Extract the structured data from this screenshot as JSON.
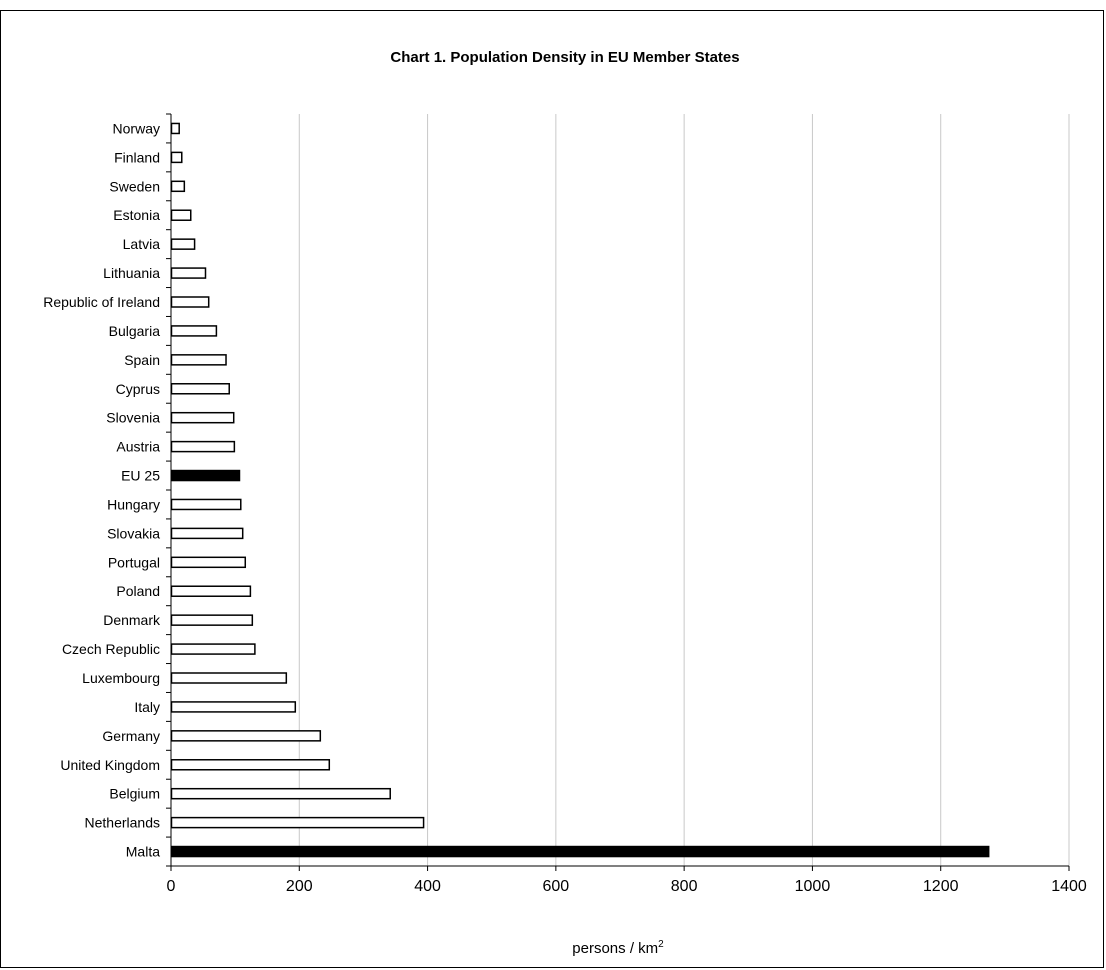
{
  "chart_data": {
    "type": "bar",
    "orientation": "horizontal",
    "title": "Chart 1.  Population Density in EU Member States",
    "xlabel": "persons / km",
    "xlabel_superscript": "2",
    "ylabel": "",
    "xlim": [
      0,
      1400
    ],
    "x_ticks": [
      0,
      200,
      400,
      600,
      800,
      1000,
      1200,
      1400
    ],
    "grid": "vertical",
    "categories": [
      "Norway",
      "Finland",
      "Sweden",
      "Estonia",
      "Latvia",
      "Lithuania",
      "Republic of Ireland",
      "Bulgaria",
      "Spain",
      "Cyprus",
      "Slovenia",
      "Austria",
      "EU 25",
      "Hungary",
      "Slovakia",
      "Portugal",
      "Poland",
      "Denmark",
      "Czech Republic",
      "Luxembourg",
      "Italy",
      "Germany",
      "United Kingdom",
      "Belgium",
      "Netherlands",
      "Malta"
    ],
    "values": [
      12,
      16,
      20,
      30,
      36,
      53,
      58,
      70,
      85,
      90,
      97,
      98,
      106,
      108,
      111,
      115,
      123,
      126,
      130,
      179,
      193,
      232,
      246,
      341,
      393,
      1274
    ],
    "highlighted": [
      "EU 25",
      "Malta"
    ],
    "colors": {
      "bar_fill": "#ffffff",
      "bar_stroke": "#000000",
      "highlight_fill": "#000000",
      "grid": "#c8c8c8"
    }
  }
}
